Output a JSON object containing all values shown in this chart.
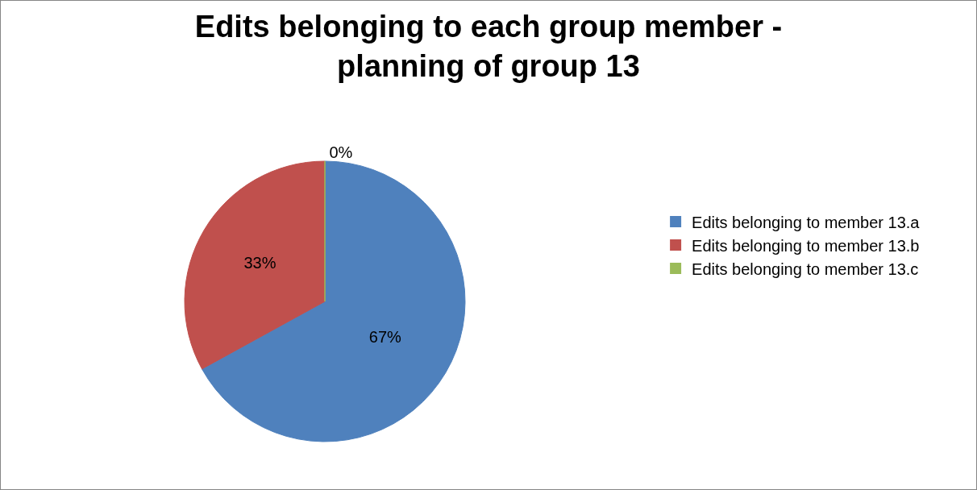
{
  "chart_data": {
    "type": "pie",
    "title": "Edits belonging to each group member -\nplanning of group 13",
    "categories": [
      "Edits belonging to member 13.a",
      "Edits belonging to member 13.b",
      "Edits belonging to member 13.c"
    ],
    "values": [
      67,
      33,
      0
    ],
    "colors": [
      "#4f81bd",
      "#c0504d",
      "#9bbb59"
    ],
    "value_labels": [
      "67%",
      "33%",
      "0%"
    ],
    "legend": "right"
  }
}
